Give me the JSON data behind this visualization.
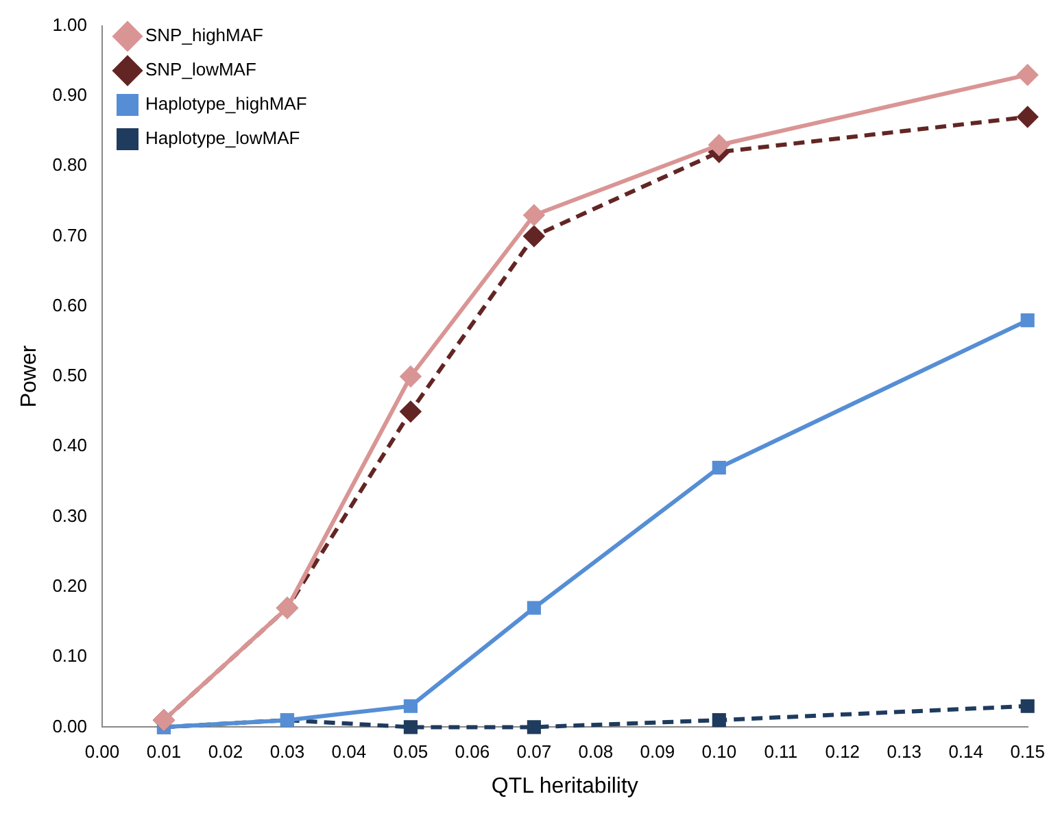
{
  "chart_data": {
    "type": "line",
    "xlabel": "QTL heritability",
    "ylabel": "Power",
    "x": [
      0.01,
      0.03,
      0.05,
      0.07,
      0.1,
      0.15
    ],
    "series": [
      {
        "name": "SNP_highMAF",
        "color": "#d99594",
        "marker": "diamond",
        "line_style": "solid",
        "values": [
          0.01,
          0.17,
          0.5,
          0.73,
          0.83,
          0.93
        ]
      },
      {
        "name": "SNP_lowMAF",
        "color": "#632523",
        "marker": "diamond",
        "line_style": "dashed",
        "values": [
          0.01,
          0.17,
          0.45,
          0.7,
          0.82,
          0.87
        ]
      },
      {
        "name": "Haplotype_highMAF",
        "color": "#558ed5",
        "marker": "square",
        "line_style": "solid",
        "values": [
          0,
          0.01,
          0.03,
          0.17,
          0.37,
          0.58
        ]
      },
      {
        "name": "Haplotype_lowMAF",
        "color": "#1f3b5e",
        "marker": "square",
        "line_style": "dashed",
        "values": [
          0,
          0.01,
          0,
          0,
          0.01,
          0.03
        ]
      }
    ],
    "xlim": [
      0,
      0.15
    ],
    "xticks": [
      {
        "value": 0,
        "label": "0.00"
      },
      {
        "value": 0.01,
        "label": "0.01"
      },
      {
        "value": 0.02,
        "label": "0.02"
      },
      {
        "value": 0.03,
        "label": "0.03"
      },
      {
        "value": 0.04,
        "label": "0.04"
      },
      {
        "value": 0.05,
        "label": "0.05"
      },
      {
        "value": 0.06,
        "label": "0.06"
      },
      {
        "value": 0.07,
        "label": "0.07"
      },
      {
        "value": 0.08,
        "label": "0.08"
      },
      {
        "value": 0.09,
        "label": "0.09"
      },
      {
        "value": 0.1,
        "label": "0.10"
      },
      {
        "value": 0.11,
        "label": "0.11"
      },
      {
        "value": 0.12,
        "label": "0.12"
      },
      {
        "value": 0.13,
        "label": "0.13"
      },
      {
        "value": 0.14,
        "label": "0.14"
      },
      {
        "value": 0.15,
        "label": "0.15"
      }
    ],
    "ylim": [
      0,
      1
    ],
    "yticks": [
      {
        "value": 0,
        "label": "0.00"
      },
      {
        "value": 0.1,
        "label": "0.10"
      },
      {
        "value": 0.2,
        "label": "0.20"
      },
      {
        "value": 0.3,
        "label": "0.30"
      },
      {
        "value": 0.4,
        "label": "0.40"
      },
      {
        "value": 0.5,
        "label": "0.50"
      },
      {
        "value": 0.6,
        "label": "0.60"
      },
      {
        "value": 0.7,
        "label": "0.70"
      },
      {
        "value": 0.8,
        "label": "0.80"
      },
      {
        "value": 0.9,
        "label": "0.90"
      },
      {
        "value": 1,
        "label": "1.00"
      }
    ],
    "grid": false,
    "legend": "top left"
  }
}
